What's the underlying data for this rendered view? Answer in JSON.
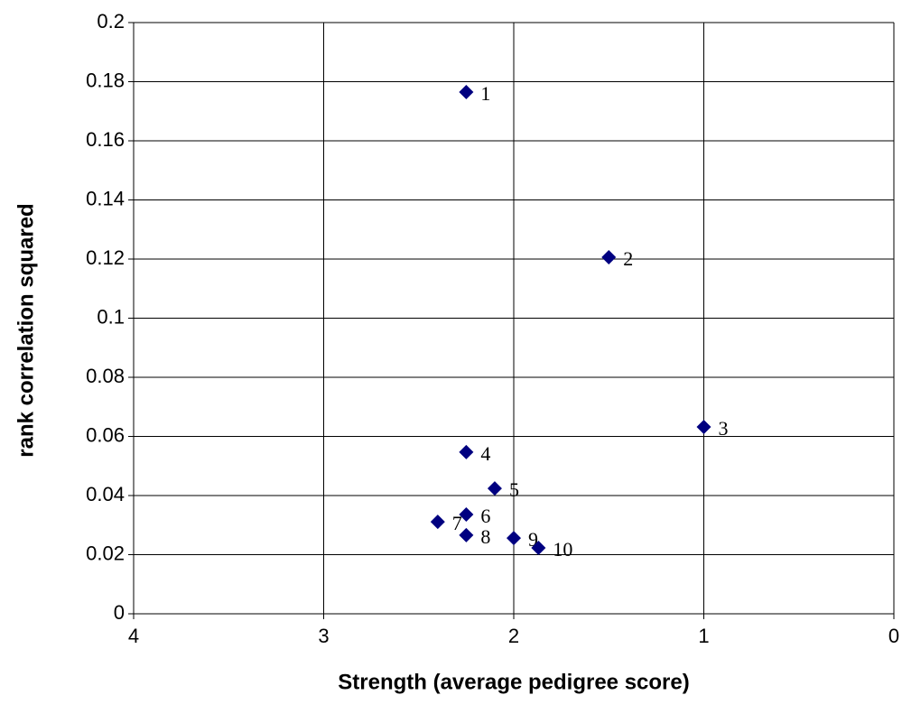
{
  "chart_data": {
    "type": "scatter",
    "x_label": "Strength (average pedigree score)",
    "y_label": "rank correlation squared",
    "series": [
      {
        "color": "#000080",
        "x": [
          2.25,
          1.5,
          1.0,
          2.25,
          2.1,
          2.25,
          2.4,
          2.25,
          2.0,
          1.87
        ],
        "values": [
          0.1765,
          0.1206,
          0.0632,
          0.0547,
          0.0424,
          0.0336,
          0.0311,
          0.0266,
          0.0256,
          0.0223
        ],
        "labels": [
          "1",
          "2",
          "3",
          "4",
          "5",
          "6",
          "7",
          "8",
          "9",
          "10"
        ]
      }
    ],
    "xlim": [
      4,
      0
    ],
    "xticks": [
      4,
      3,
      2,
      1,
      0
    ],
    "ylim": [
      0,
      0.2
    ],
    "yticks": [
      0,
      0.02,
      0.04,
      0.06,
      0.08,
      0.1,
      0.12,
      0.14,
      0.16,
      0.18,
      0.2
    ],
    "grid": true
  }
}
